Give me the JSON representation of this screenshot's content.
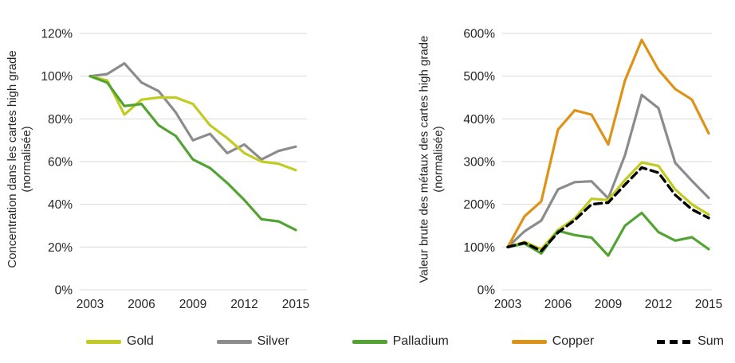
{
  "styles": {
    "grid_color": "#d9d9d9",
    "text_color": "#262626",
    "background": "#ffffff"
  },
  "legend": {
    "items": [
      {
        "label": "Gold",
        "color": "#c2cb21",
        "dashed": false
      },
      {
        "label": "Silver",
        "color": "#8c8c8c",
        "dashed": false
      },
      {
        "label": "Palladium",
        "color": "#53a333",
        "dashed": false
      },
      {
        "label": "Copper",
        "color": "#de9216",
        "dashed": false
      },
      {
        "label": "Sum",
        "color": "#000000",
        "dashed": true
      }
    ]
  },
  "chart_data": [
    {
      "type": "line",
      "title": "",
      "ylabel_line1": "Concentration dans les cartes high grade",
      "ylabel_line2": "(normalisée)",
      "x": [
        2003,
        2004,
        2005,
        2006,
        2007,
        2008,
        2009,
        2010,
        2011,
        2012,
        2013,
        2014,
        2015
      ],
      "xticks": [
        "2003",
        "2006",
        "2009",
        "2012",
        "2015"
      ],
      "ylim": [
        0,
        120
      ],
      "ytick_step": 20,
      "yticks": [
        "0%",
        "20%",
        "40%",
        "60%",
        "80%",
        "100%",
        "120%"
      ],
      "grid": "horizontal",
      "legend_position": "bottom-shared",
      "series": [
        {
          "name": "Silver",
          "color": "#8c8c8c",
          "dashed": false,
          "values": [
            100,
            101,
            106,
            97,
            93,
            83,
            70,
            73,
            64,
            68,
            61,
            65,
            67
          ]
        },
        {
          "name": "Gold",
          "color": "#c2cb21",
          "dashed": false,
          "values": [
            100,
            98,
            82,
            89,
            90,
            90,
            87,
            77,
            71,
            64,
            60,
            59,
            56
          ]
        },
        {
          "name": "Palladium",
          "color": "#53a333",
          "dashed": false,
          "values": [
            100,
            97,
            86,
            87,
            77,
            72,
            61,
            57,
            50,
            42,
            33,
            32,
            28
          ]
        }
      ]
    },
    {
      "type": "line",
      "title": "",
      "ylabel_line1": "Valeur brute des métaux des cartes high grade",
      "ylabel_line2": "(normalisée)",
      "x": [
        2003,
        2004,
        2005,
        2006,
        2007,
        2008,
        2009,
        2010,
        2011,
        2012,
        2013,
        2014,
        2015
      ],
      "xticks": [
        "2003",
        "2006",
        "2009",
        "2012",
        "2015"
      ],
      "ylim": [
        0,
        600
      ],
      "ytick_step": 100,
      "yticks": [
        "0%",
        "100%",
        "200%",
        "300%",
        "400%",
        "500%",
        "600%"
      ],
      "grid": "horizontal",
      "legend_position": "bottom-shared",
      "series": [
        {
          "name": "Silver",
          "color": "#8c8c8c",
          "dashed": false,
          "values": [
            100,
            137,
            162,
            235,
            252,
            254,
            214,
            315,
            456,
            425,
            297,
            255,
            215
          ]
        },
        {
          "name": "Gold",
          "color": "#c2cb21",
          "dashed": false,
          "values": [
            100,
            112,
            95,
            140,
            167,
            213,
            210,
            257,
            298,
            290,
            235,
            200,
            176
          ]
        },
        {
          "name": "Palladium",
          "color": "#53a333",
          "dashed": false,
          "values": [
            100,
            108,
            85,
            138,
            128,
            122,
            80,
            150,
            180,
            135,
            115,
            123,
            95
          ]
        },
        {
          "name": "Copper",
          "color": "#de9216",
          "dashed": false,
          "values": [
            100,
            172,
            207,
            375,
            420,
            410,
            340,
            490,
            585,
            515,
            470,
            445,
            366
          ]
        },
        {
          "name": "Sum",
          "color": "#000000",
          "dashed": true,
          "values": [
            100,
            110,
            91,
            134,
            163,
            200,
            204,
            246,
            286,
            274,
            222,
            188,
            168
          ]
        }
      ]
    }
  ]
}
